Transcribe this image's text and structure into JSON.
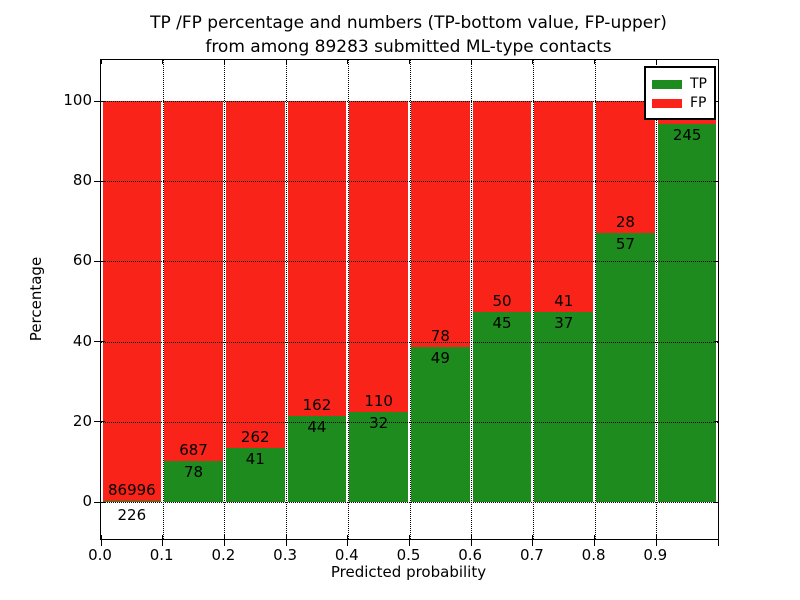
{
  "title": {
    "line1": "TP /FP percentage and numbers (TP-bottom value, FP-upper)",
    "line2": "from among 89283 submitted ML-type contacts"
  },
  "axes": {
    "xlabel": "Predicted probability",
    "ylabel": "Percentage",
    "x_tick_labels": [
      "0.0",
      "0.1",
      "0.2",
      "0.3",
      "0.4",
      "0.5",
      "0.6",
      "0.7",
      "0.8",
      "0.9"
    ],
    "y_tick_labels": [
      "0",
      "20",
      "40",
      "60",
      "80",
      "100"
    ],
    "y_tick_values": [
      0,
      20,
      40,
      60,
      80,
      100
    ],
    "x_range": [
      0.0,
      1.0
    ],
    "grid": "dotted black"
  },
  "legend": {
    "items": [
      {
        "label": "TP",
        "color": "#1e8b1e"
      },
      {
        "label": "FP",
        "color": "#f9231a"
      }
    ],
    "position": "upper right"
  },
  "colors": {
    "tp": "#1e8b1e",
    "fp": "#f9231a",
    "background": "#ffffff",
    "text": "#000000",
    "grid": "#000000"
  },
  "chart_data": {
    "type": "bar",
    "stacked": true,
    "normalized_to": 100,
    "title": "TP /FP percentage and numbers (TP-bottom value, FP-upper) from among 89283 submitted ML-type contacts",
    "xlabel": "Predicted probability",
    "ylabel": "Percentage",
    "ylim": [
      0,
      100
    ],
    "total_contacts": 89283,
    "bin_edges": [
      0.0,
      0.1,
      0.2,
      0.3,
      0.4,
      0.5,
      0.6,
      0.7,
      0.8,
      0.9,
      1.0
    ],
    "bins": [
      "0.0-0.1",
      "0.1-0.2",
      "0.2-0.3",
      "0.3-0.4",
      "0.4-0.5",
      "0.5-0.6",
      "0.6-0.7",
      "0.7-0.8",
      "0.8-0.9",
      "0.9-1.0"
    ],
    "series": [
      {
        "name": "TP",
        "position": "bottom",
        "color": "#1e8b1e",
        "counts": [
          226,
          78,
          41,
          44,
          32,
          49,
          45,
          37,
          57,
          245
        ]
      },
      {
        "name": "FP",
        "position": "top",
        "color": "#f9231a",
        "counts": [
          86996,
          687,
          262,
          162,
          110,
          78,
          50,
          41,
          28,
          15
        ]
      }
    ],
    "note_last_fp_label": "15 (mostly hidden behind legend)"
  }
}
